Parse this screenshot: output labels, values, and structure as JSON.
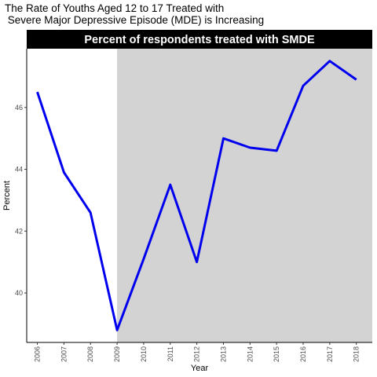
{
  "title_line1": "The Rate of Youths Aged 12 to 17 Treated with",
  "title_line2": " Severe Major Depressive Episode (MDE) is Increasing",
  "chart_data": {
    "type": "line",
    "strip_title": "Percent of respondents treated with SMDE",
    "xlabel": "Year",
    "ylabel": "Percent",
    "x": [
      2006,
      2007,
      2008,
      2009,
      2010,
      2011,
      2012,
      2013,
      2014,
      2015,
      2016,
      2017,
      2018
    ],
    "series": [
      {
        "values": [
          46.5,
          43.9,
          42.6,
          38.8,
          41.1,
          43.5,
          41.0,
          45.0,
          44.7,
          44.6,
          46.7,
          47.5,
          46.9
        ]
      }
    ],
    "y_ticks": [
      40,
      42,
      44,
      46
    ],
    "ylim": [
      38.4,
      47.9
    ],
    "xlim": [
      2005.6,
      2018.6
    ],
    "shaded_region": {
      "from": 2009,
      "to": 2018.6
    },
    "line_color": "#0000ee",
    "shade_color": "#d3d3d3",
    "strip_color": "#000000",
    "grid": false
  }
}
